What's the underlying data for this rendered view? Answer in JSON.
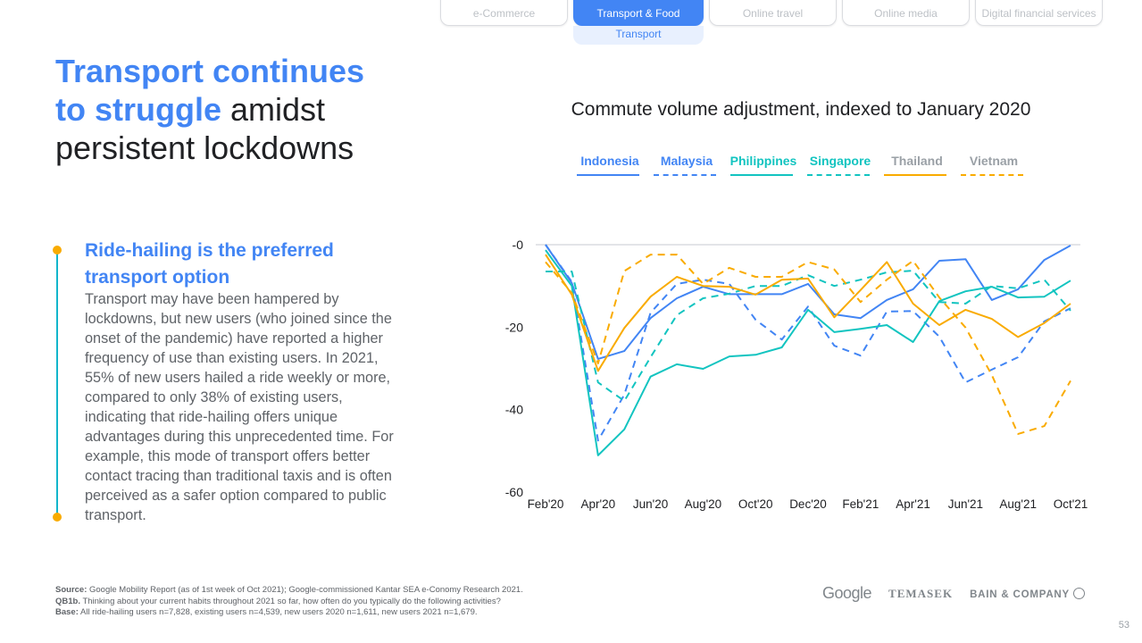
{
  "tabs": [
    {
      "label": "e-Commerce"
    },
    {
      "label": "Transport & Food",
      "active": true,
      "subtab": "Transport"
    },
    {
      "label": "Online travel"
    },
    {
      "label": "Online media"
    },
    {
      "label": "Digital financial services"
    }
  ],
  "title": {
    "hl1": "Transport continues",
    "hl2": "to struggle",
    "rest1": " amidst",
    "rest2": "persistent lockdowns"
  },
  "section": {
    "heading": "Ride-hailing is the preferred transport option",
    "body": "Transport may have been hampered by lockdowns, but new users (who joined since the onset of the pandemic) have reported a higher frequency of use than existing users. In 2021, 55% of new users hailed a ride weekly or more, compared to only 38% of existing users, indicating that ride-hailing offers unique advantages during this unprecedented time. For example, this mode of transport offers better contact tracing than traditional taxis and is often perceived as a safer option compared to public transport."
  },
  "chart_data": {
    "type": "line",
    "title": "Commute volume adjustment, indexed to January 2020",
    "x": [
      "Feb'20",
      "Mar'20",
      "Apr'20",
      "May'20",
      "Jun'20",
      "Jul'20",
      "Aug'20",
      "Sep'20",
      "Oct'20",
      "Nov'20",
      "Dec'20",
      "Jan'21",
      "Feb'21",
      "Mar'21",
      "Apr'21",
      "May'21",
      "Jun'21",
      "Jul'21",
      "Aug'21",
      "Sep'21",
      "Oct'21"
    ],
    "xtick_labels": [
      "Feb'20",
      "Apr'20",
      "Jun'20",
      "Aug'20",
      "Oct'20",
      "Dec'20",
      "Feb'21",
      "Apr'21",
      "Jun'21",
      "Aug'21",
      "Oct'21"
    ],
    "ytick_labels": [
      "-0",
      "-20",
      "-40",
      "-60"
    ],
    "ylim": [
      -60,
      0
    ],
    "legend_position": "top",
    "series": [
      {
        "name": "Indonesia",
        "color": "#4285f4",
        "dashed": false,
        "values": [
          0,
          -9.3,
          -27.7,
          -25.8,
          -17.8,
          -13,
          -10.2,
          -12,
          -12,
          -12,
          -9.5,
          -16.9,
          -17.8,
          -13.4,
          -10.8,
          -3.9,
          -3.5,
          -13.4,
          -10.8,
          -3.7,
          -0.2
        ]
      },
      {
        "name": "Malaysia",
        "color": "#4285f4",
        "dashed": true,
        "values": [
          0,
          -9,
          -47.5,
          -36.4,
          -16.5,
          -9.5,
          -8.5,
          -9.5,
          -18.2,
          -23,
          -15,
          -24.5,
          -26.9,
          -16.2,
          -16.1,
          -22.3,
          -33.4,
          -30.3,
          -27.3,
          -18.6,
          -15.4
        ]
      },
      {
        "name": "Philippines",
        "color": "#12c4c0",
        "dashed": false,
        "values": [
          -1.3,
          -10,
          -51.1,
          -44.8,
          -32,
          -29,
          -30.1,
          -27.1,
          -26.7,
          -24.9,
          -15.8,
          -21.2,
          -20.4,
          -19.5,
          -23.6,
          -13.7,
          -11.3,
          -10.2,
          -12.8,
          -12.6,
          -8.7
        ]
      },
      {
        "name": "Singapore",
        "color": "#12c4c0",
        "dashed": true,
        "values": [
          -6.5,
          -6.5,
          -33.4,
          -37.9,
          -27.3,
          -17.1,
          -13,
          -11.9,
          -10,
          -10,
          -7.4,
          -10,
          -8.5,
          -6.7,
          -6.3,
          -13.9,
          -14.3,
          -10,
          -10.6,
          -8.5,
          -16
        ]
      },
      {
        "name": "Thailand",
        "color": "#f9ab00",
        "dashed": false,
        "values": [
          -2.4,
          -12.1,
          -30.6,
          -20.2,
          -12.6,
          -7.8,
          -10,
          -10.2,
          -12.1,
          -8.5,
          -8.2,
          -17.6,
          -11,
          -4.2,
          -14.3,
          -19.5,
          -15.8,
          -18,
          -22.4,
          -19,
          -14.3
        ]
      },
      {
        "name": "Vietnam",
        "color": "#f9ab00",
        "dashed": true,
        "values": [
          -4.2,
          -11.7,
          -28.8,
          -6.4,
          -2.4,
          -2.4,
          -9.5,
          -5.6,
          -7.8,
          -7.8,
          -4.2,
          -6,
          -13.9,
          -8.5,
          -3.9,
          -12.8,
          -20.1,
          -31.6,
          -45.9,
          -44,
          -33
        ]
      }
    ],
    "legend_text_colors": [
      "#4285f4",
      "#4285f4",
      "#12c4c0",
      "#12c4c0",
      "#9aa0a6",
      "#9aa0a6"
    ]
  },
  "footer": {
    "source_label": "Source:",
    "source": " Google Mobility Report (as of 1st week of Oct 2021); Google-commissioned Kantar SEA e-Conomy Research 2021.",
    "q_label": "QB1b.",
    "q": " Thinking about your current habits throughout 2021 so far, how often do you typically do the following activities?",
    "base_label": "Base:",
    "base": " All ride-hailing users n=7,828, existing users n=4,539, new users 2020 n=1,611, new users 2021 n=1,679."
  },
  "logos": {
    "google": "Google",
    "temasek": "TEMASEK",
    "bain": "BAIN & COMPANY"
  },
  "page_number": "53"
}
